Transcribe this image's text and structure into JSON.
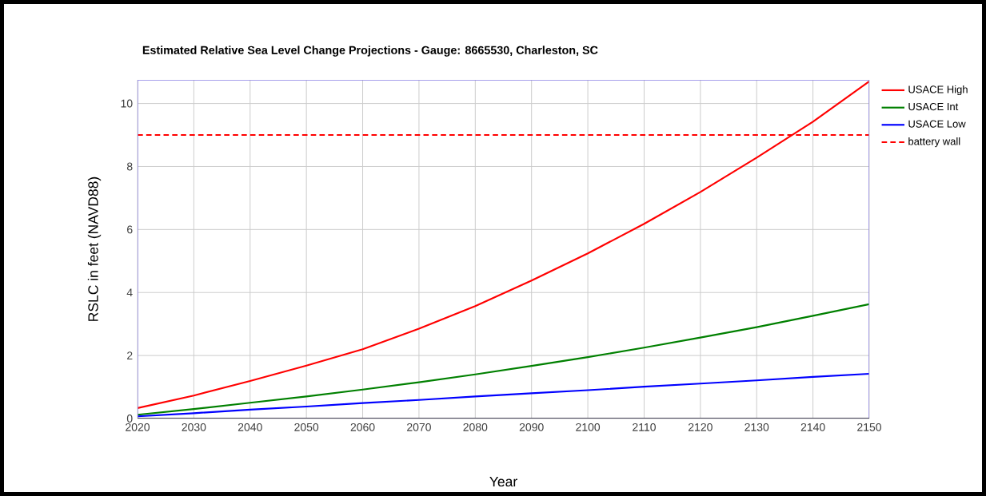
{
  "chart_data": {
    "type": "line",
    "title": "Estimated Relative Sea Level Change Projections - Gauge: 8665530, Charleston, SC",
    "xlabel": "Year",
    "ylabel": "RSLC in feet (NAVD88)",
    "x": [
      2020,
      2030,
      2040,
      2050,
      2060,
      2070,
      2080,
      2090,
      2100,
      2110,
      2120,
      2130,
      2140,
      2150
    ],
    "series": [
      {
        "name": "USACE High",
        "color": "#ff0000",
        "values": [
          0.33,
          0.73,
          1.19,
          1.68,
          2.2,
          2.85,
          3.57,
          4.38,
          5.24,
          6.18,
          7.19,
          8.28,
          9.42,
          10.7
        ]
      },
      {
        "name": "USACE Int",
        "color": "#008000",
        "values": [
          0.12,
          0.3,
          0.5,
          0.7,
          0.92,
          1.15,
          1.4,
          1.67,
          1.95,
          2.25,
          2.57,
          2.9,
          3.26,
          3.63
        ]
      },
      {
        "name": "USACE Low",
        "color": "#0000ff",
        "values": [
          0.07,
          0.17,
          0.28,
          0.38,
          0.49,
          0.59,
          0.7,
          0.8,
          0.9,
          1.01,
          1.11,
          1.21,
          1.32,
          1.42
        ]
      },
      {
        "name": "battery wall",
        "color": "#ff0000",
        "line_style": "dashed",
        "x": [
          2020,
          2150
        ],
        "values": [
          9,
          9
        ]
      }
    ],
    "xlim": [
      2020,
      2150
    ],
    "ylim": [
      0,
      10.75
    ],
    "xticks": [
      2020,
      2030,
      2040,
      2050,
      2060,
      2070,
      2080,
      2090,
      2100,
      2110,
      2120,
      2130,
      2140,
      2150
    ],
    "yticks": [
      0,
      2,
      4,
      6,
      8,
      10
    ],
    "grid": true,
    "legend": "top right",
    "marker": "none"
  }
}
